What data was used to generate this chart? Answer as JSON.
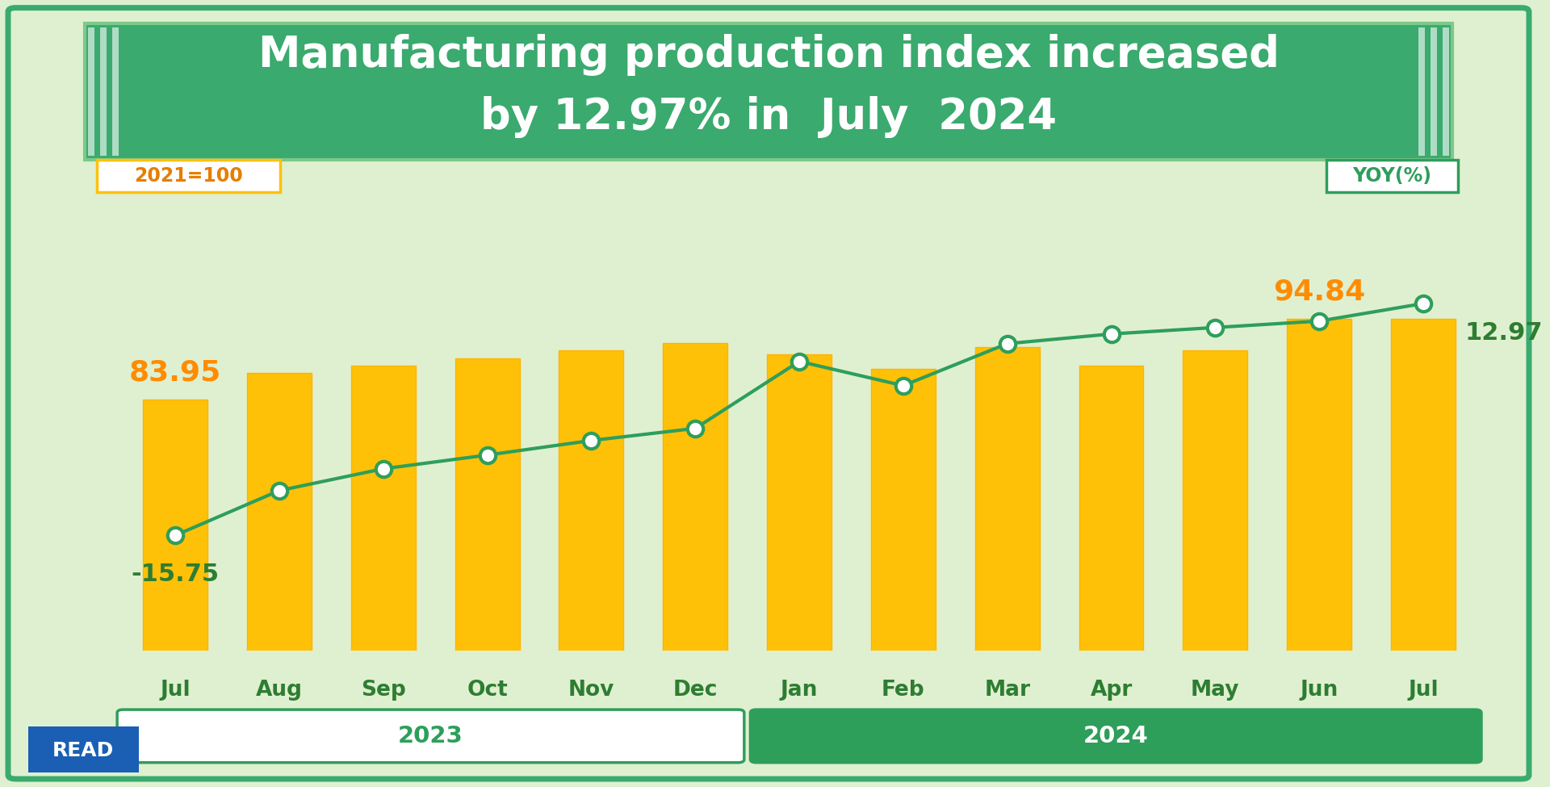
{
  "title_line1": "Manufacturing production index increased",
  "title_line2": "by 12.97% in  July  2024",
  "title_bg_color": "#3aaa6e",
  "title_text_color": "#ffffff",
  "bg_color": "#dff0d0",
  "outer_border_color": "#3aaa6e",
  "months": [
    "Jul",
    "Aug",
    "Sep",
    "Oct",
    "Nov",
    "Dec",
    "Jan",
    "Feb",
    "Mar",
    "Apr",
    "May",
    "Jun",
    "Jul"
  ],
  "bar_values": [
    83.95,
    87.5,
    88.5,
    89.5,
    90.5,
    91.5,
    90.0,
    88.0,
    91.0,
    88.5,
    90.5,
    94.84,
    94.84
  ],
  "bar_color": "#FFC107",
  "bar_edge_color": "#FFB300",
  "line_values": [
    -15.75,
    -10.2,
    -7.5,
    -5.8,
    -4.0,
    -2.5,
    5.8,
    2.8,
    8.0,
    9.2,
    10.0,
    10.8,
    12.97
  ],
  "line_color": "#2e9e5b",
  "line_width": 3.0,
  "marker_face": "#ffffff",
  "marker_edge": "#2e9e5b",
  "marker_size": 14,
  "marker_edge_width": 3.0,
  "label_2021_100": "2021=100",
  "label_yoy": "YOY(%)",
  "label_box_color": "#FFC107",
  "first_bar_label": "83.95",
  "last_bar_label": "94.84",
  "first_line_label": "-15.75",
  "last_line_label": "12.97",
  "bar_label_color": "#FF8C00",
  "line_label_color": "#2e7d32",
  "year_2023_label": "2023",
  "year_2024_label": "2024",
  "year_bar_color": "#2e9e5b",
  "year_bar_text_color": "#ffffff",
  "read_label": "READ",
  "read_bg": "#1a5fb4",
  "read_text_color": "#ffffff"
}
